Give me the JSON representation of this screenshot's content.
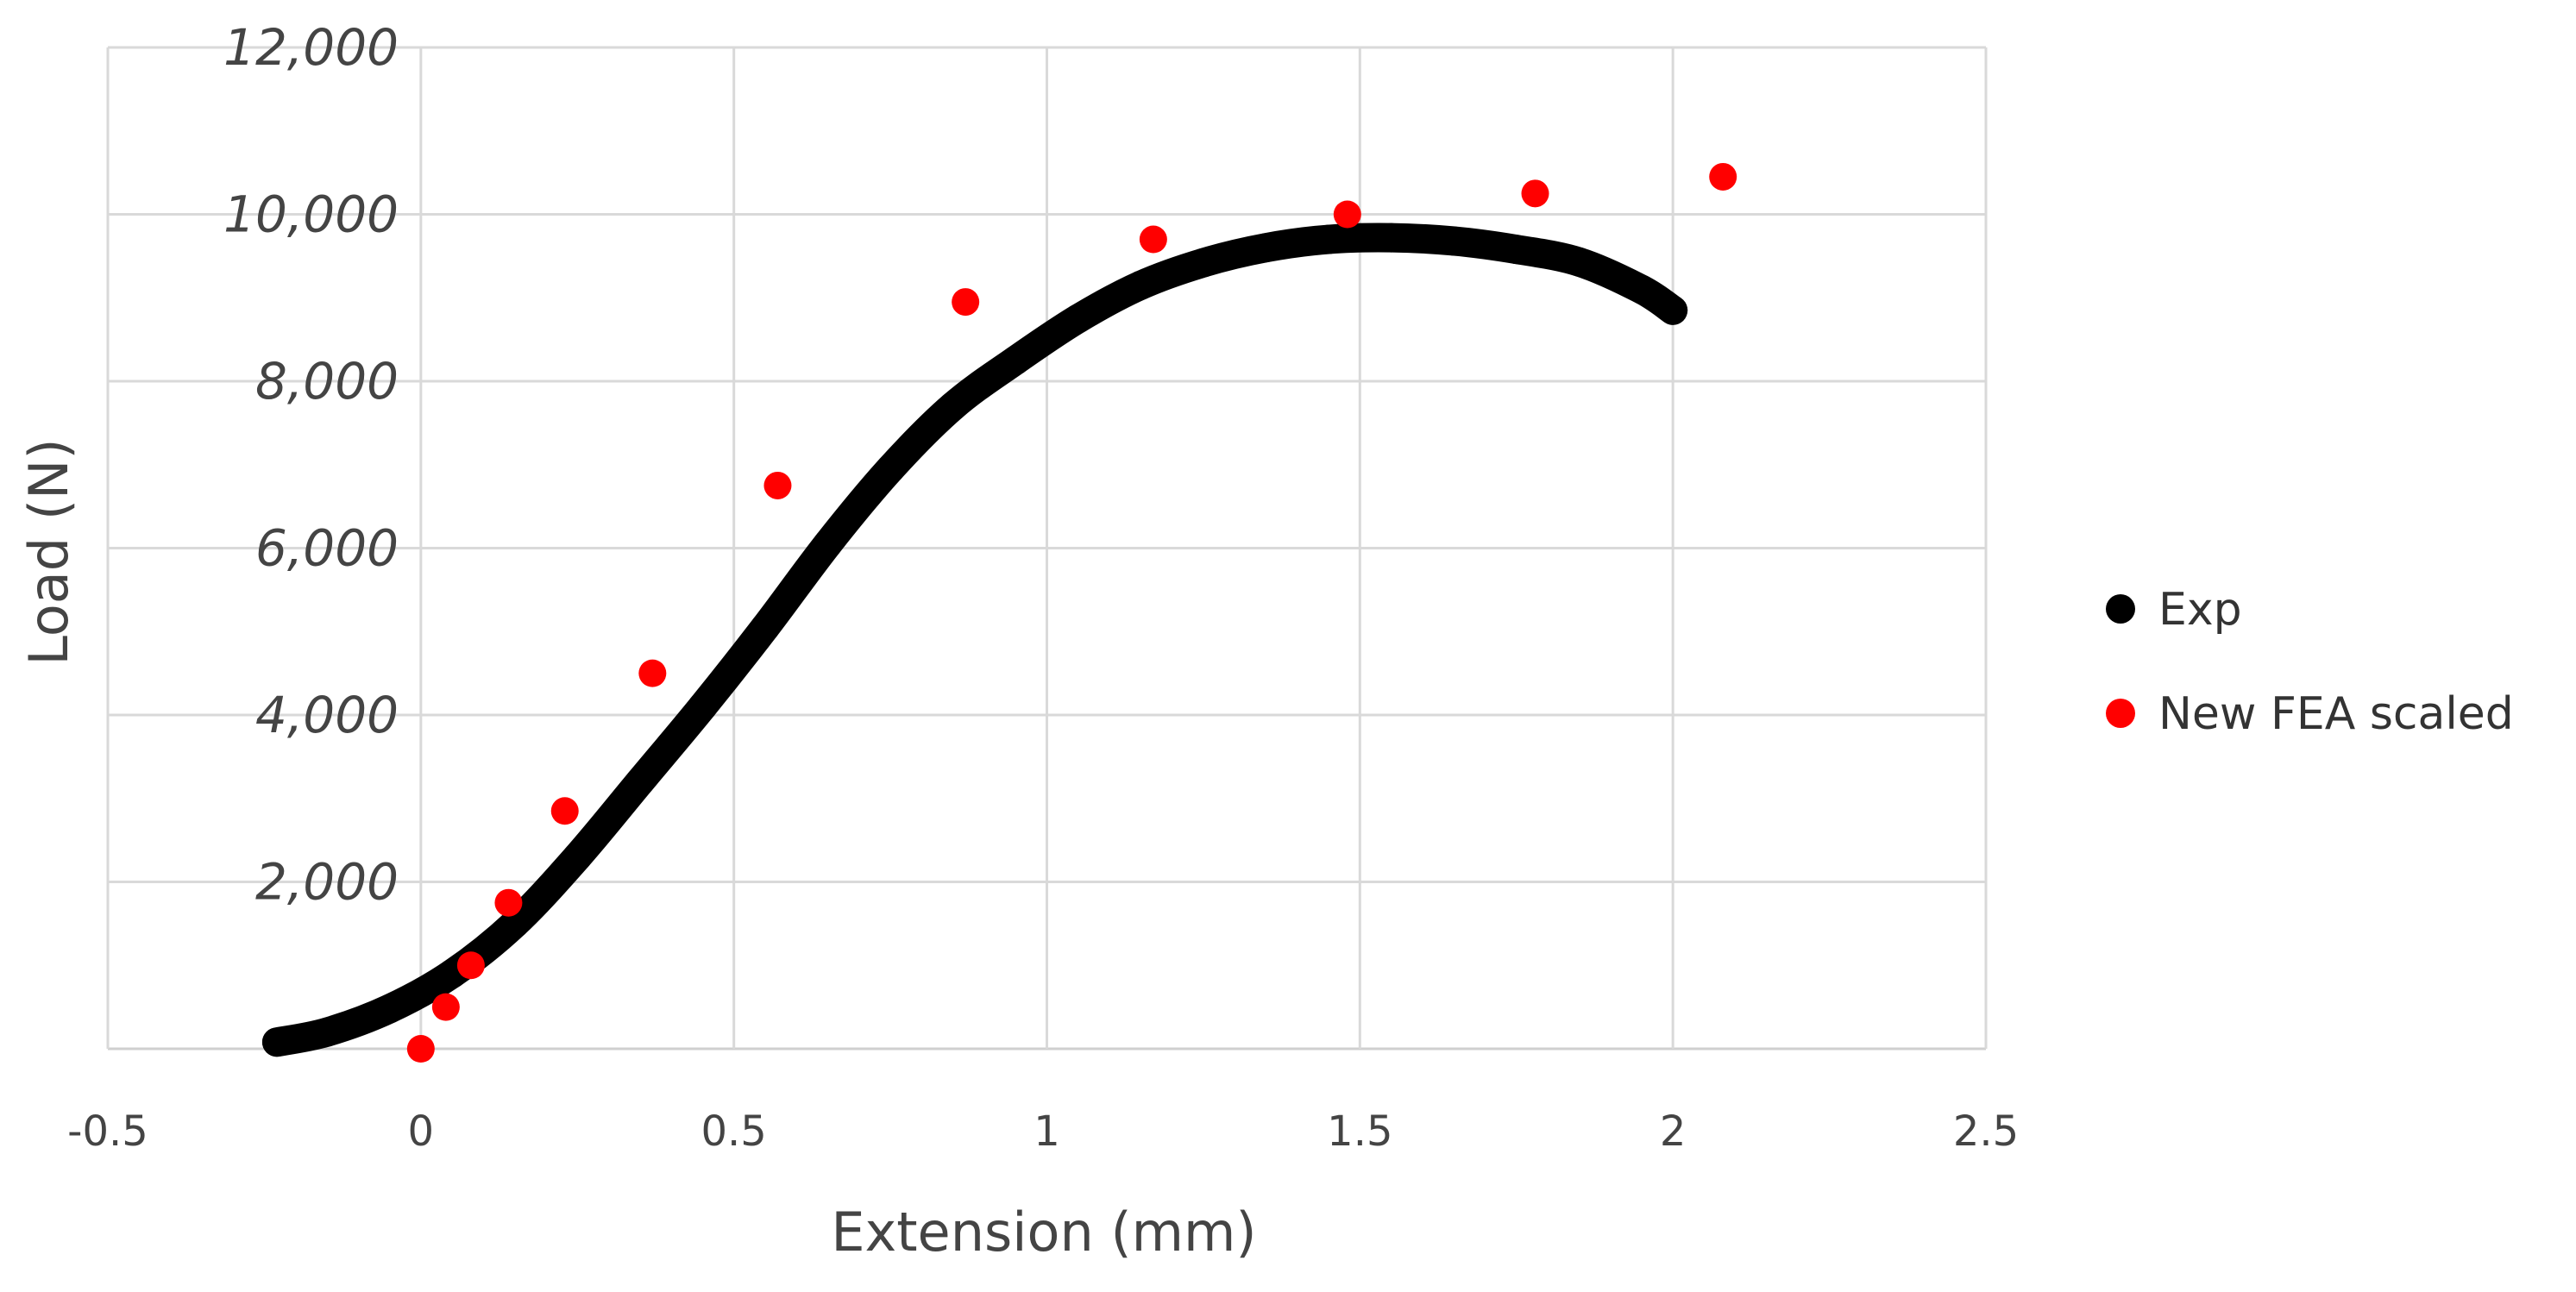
{
  "chart_data": {
    "type": "scatter",
    "title": "",
    "xlabel": "Extension (mm)",
    "ylabel": "Load (N)",
    "xlim": [
      -0.5,
      2.5
    ],
    "ylim": [
      0,
      12000
    ],
    "x_ticks": [
      -0.5,
      0,
      0.5,
      1,
      1.5,
      2,
      2.5
    ],
    "x_tick_labels": [
      "-0.5",
      "0",
      "0.5",
      "1",
      "1.5",
      "2",
      "2.5"
    ],
    "y_ticks": [
      0,
      2000,
      4000,
      6000,
      8000,
      10000,
      12000
    ],
    "y_tick_labels": [
      "",
      "2,000",
      "4,000",
      "6,000",
      "8,000",
      "10,000",
      "12,000"
    ],
    "grid": true,
    "legend_position": "right",
    "series": [
      {
        "name": "Exp",
        "color": "#000000",
        "marker": "dense-line",
        "x": [
          -0.23,
          -0.15,
          -0.05,
          0.05,
          0.15,
          0.25,
          0.35,
          0.45,
          0.55,
          0.65,
          0.75,
          0.85,
          0.95,
          1.05,
          1.15,
          1.25,
          1.35,
          1.45,
          1.55,
          1.65,
          1.75,
          1.85,
          1.95,
          2.0
        ],
        "y": [
          80,
          200,
          480,
          900,
          1500,
          2300,
          3200,
          4100,
          5050,
          6050,
          6950,
          7700,
          8250,
          8750,
          9150,
          9420,
          9600,
          9700,
          9720,
          9680,
          9580,
          9430,
          9100,
          8850
        ]
      },
      {
        "name": "New FEA scaled",
        "color": "#ff0000",
        "marker": "circle",
        "x": [
          0.0,
          0.04,
          0.08,
          0.14,
          0.23,
          0.37,
          0.57,
          0.87,
          1.17,
          1.48,
          1.78,
          2.08
        ],
        "y": [
          0,
          500,
          1000,
          1750,
          2850,
          4500,
          6750,
          8950,
          9700,
          10000,
          10250,
          10450
        ]
      }
    ]
  }
}
